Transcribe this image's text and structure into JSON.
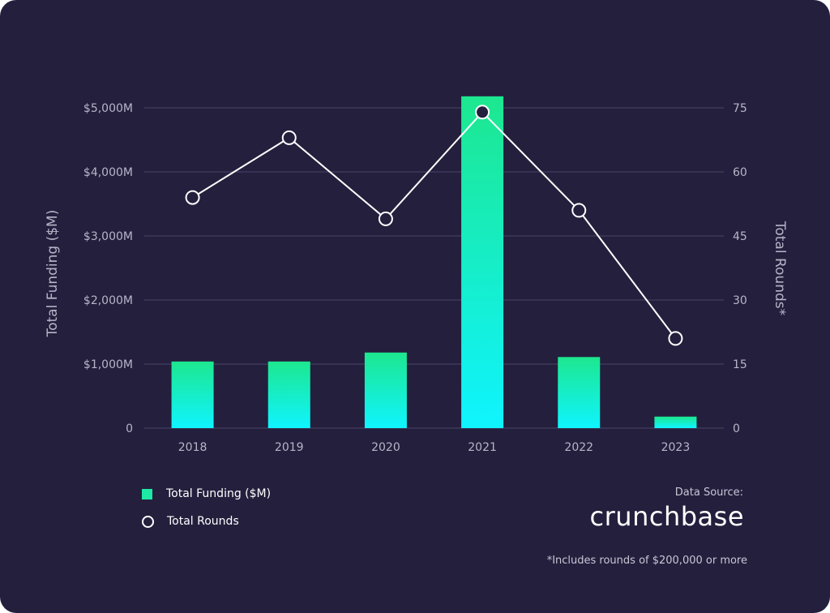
{
  "colors": {
    "background": "#241f3d",
    "bar_top": "#1de78f",
    "bar_bottom": "#0ff4ff",
    "line": "#ffffff",
    "marker_fill": "#241f3d",
    "grid": "#4a4566",
    "axis_text": "#b8b4c8"
  },
  "chart_data": {
    "type": "bar",
    "categories": [
      "2018",
      "2019",
      "2020",
      "2021",
      "2022",
      "2023"
    ],
    "series": [
      {
        "name": "Total Funding ($M)",
        "type": "bar",
        "axis": "left",
        "values": [
          1040,
          1040,
          1180,
          5180,
          1110,
          180
        ]
      },
      {
        "name": "Total Rounds",
        "type": "line",
        "axis": "right",
        "values": [
          54,
          68,
          49,
          74,
          51,
          21
        ]
      }
    ],
    "ylabel_left": "Total Funding  ($M)",
    "ylabel_right": "Total Rounds*",
    "ylim_left": [
      0,
      5000
    ],
    "ylim_right": [
      0,
      75
    ],
    "yticks_left": [
      "0",
      "$1,000M",
      "$2,000M",
      "$3,000M",
      "$4,000M",
      "$5,000M"
    ],
    "yticks_right": [
      "0",
      "15",
      "30",
      "45",
      "60",
      "75"
    ],
    "grid": true,
    "legend_position": "bottom-left"
  },
  "legend": {
    "funding_label": "Total Funding  ($M)",
    "rounds_label": "Total Rounds"
  },
  "source": {
    "label": "Data Source:",
    "brand": "crunchbase"
  },
  "footnote": "*Includes rounds of $200,000 or more"
}
